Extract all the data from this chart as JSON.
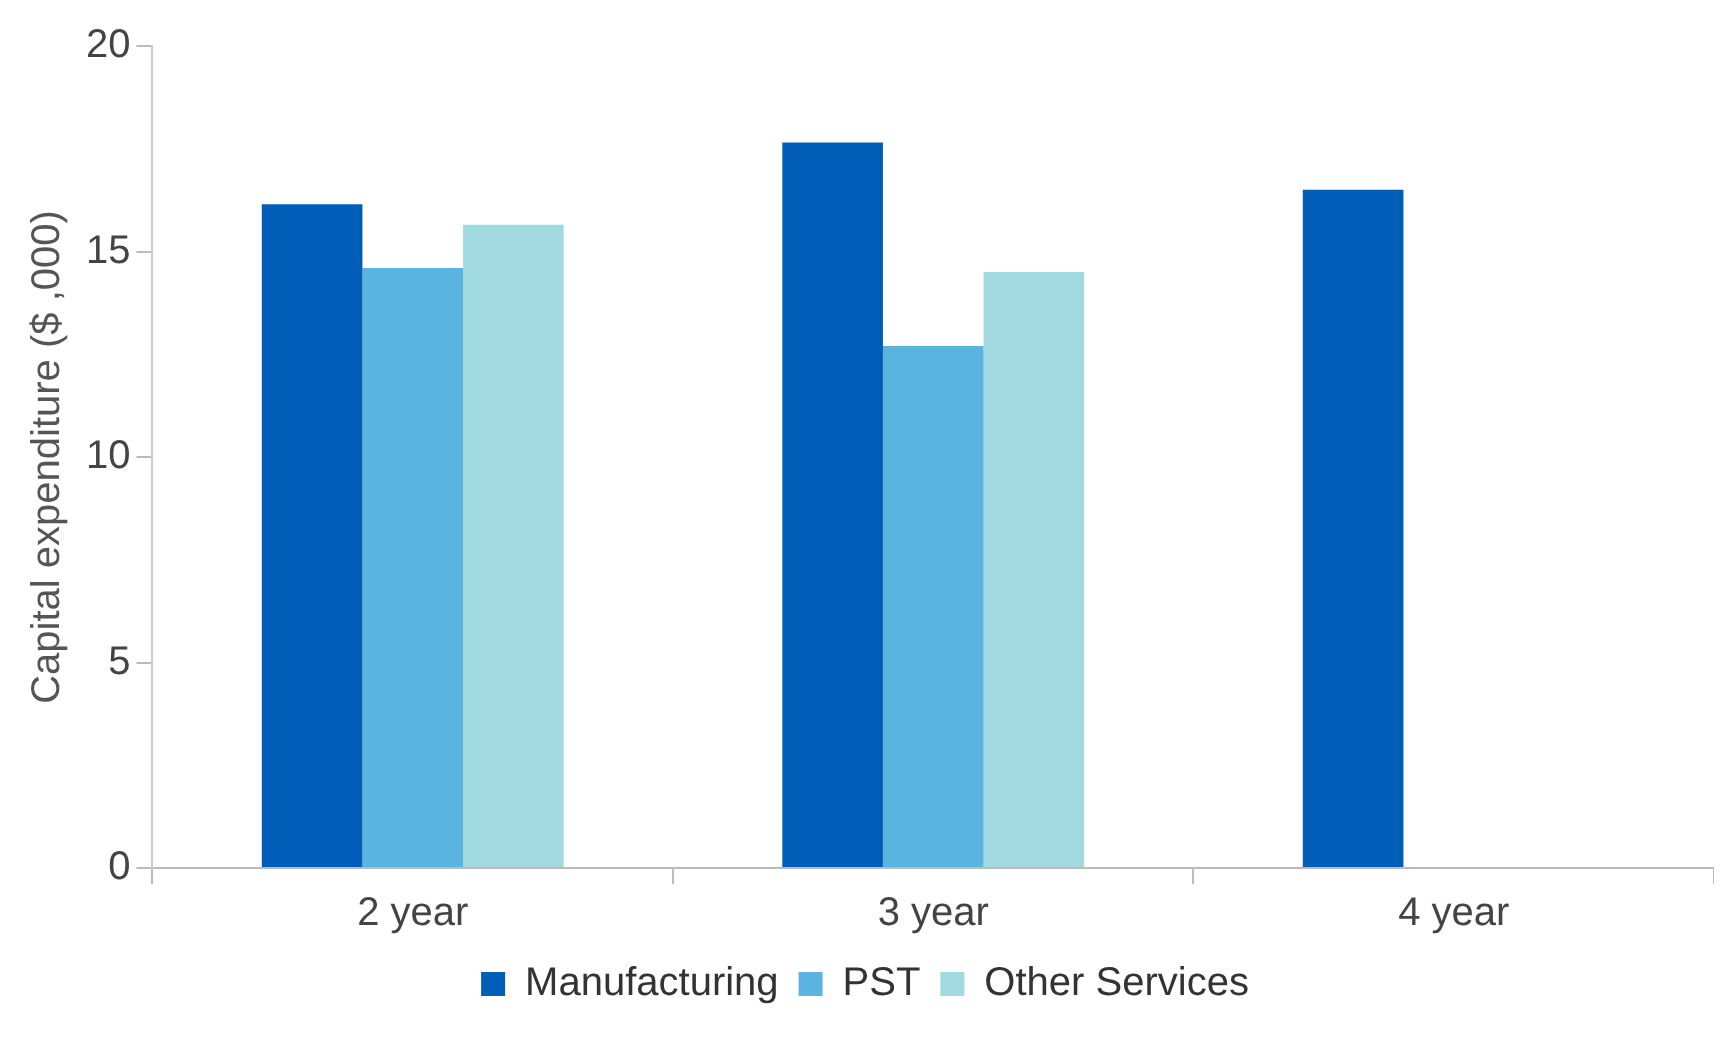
{
  "chart_data": {
    "type": "bar",
    "ylabel": "Capital expenditure ($ ,000)",
    "categories": [
      "2 year",
      "3 year",
      "4 year"
    ],
    "series": [
      {
        "name": "Manufacturing",
        "color": "#005eb8",
        "values": [
          16.15,
          17.65,
          16.5
        ]
      },
      {
        "name": "PST",
        "color": "#5bb3e0",
        "values": [
          14.6,
          12.7,
          null
        ]
      },
      {
        "name": "Other Services",
        "color": "#a0dae0",
        "values": [
          15.65,
          14.5,
          null
        ]
      }
    ],
    "ylim": [
      0,
      20
    ],
    "yticks": [
      0,
      5,
      10,
      15,
      20
    ],
    "grid": false,
    "legend": "bottom"
  }
}
